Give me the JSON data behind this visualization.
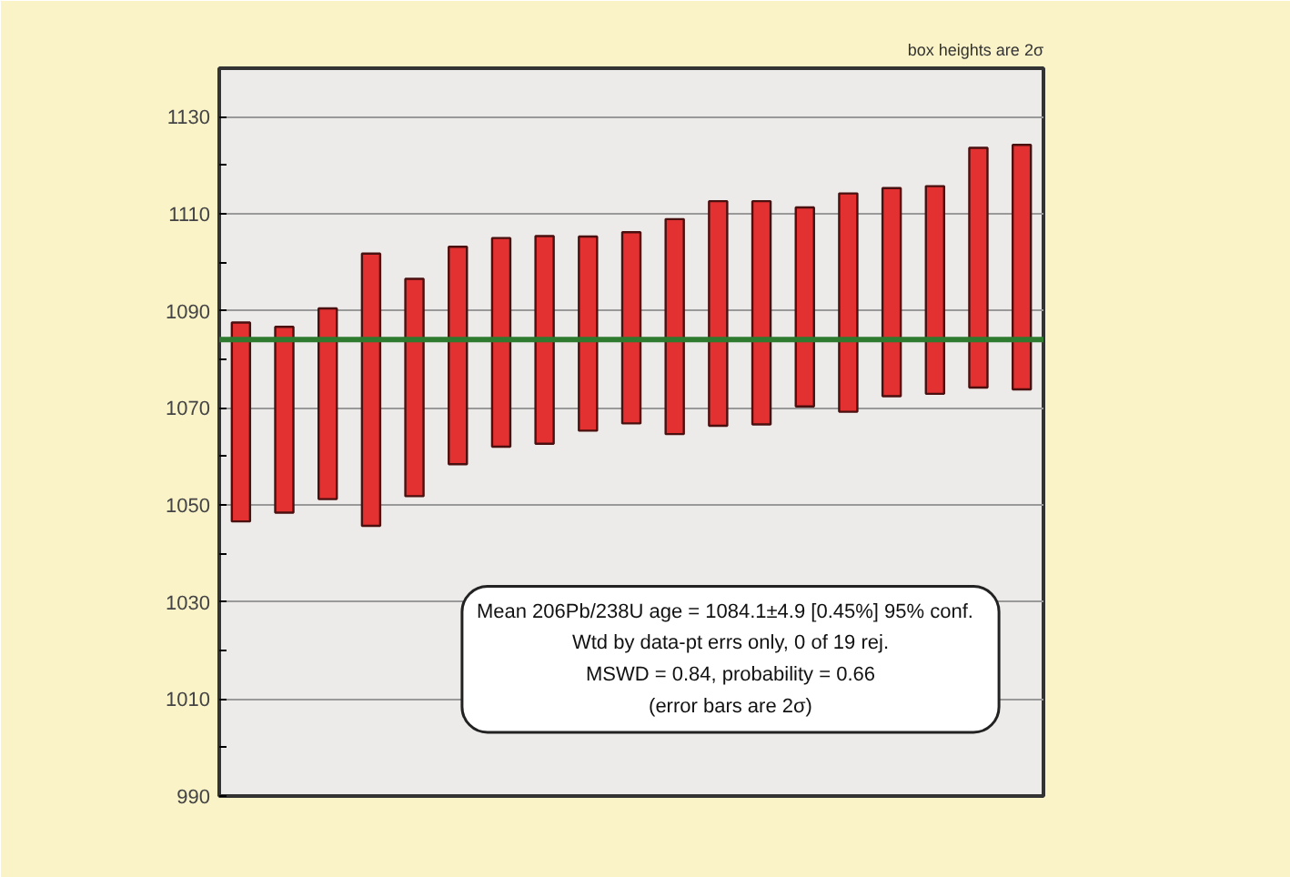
{
  "chart_data": {
    "type": "bar",
    "categories": [
      null,
      null,
      null,
      null,
      null,
      null,
      null,
      null,
      null,
      null,
      null,
      null,
      null,
      null,
      null,
      null,
      null,
      null,
      null
    ],
    "base": [
      1046.6,
      1048.4,
      1051.2,
      1045.7,
      1051.8,
      1058.4,
      1062.0,
      1062.6,
      1065.3,
      1066.8,
      1064.6,
      1066.3,
      1066.6,
      1070.3,
      1069.2,
      1072.4,
      1072.9,
      1074.2,
      1073.8
    ],
    "values": [
      41.0,
      38.3,
      39.3,
      56.1,
      44.8,
      44.8,
      43.0,
      42.8,
      40.0,
      39.4,
      44.3,
      46.3,
      46.0,
      41.0,
      45.0,
      42.9,
      42.8,
      49.4,
      50.4
    ],
    "color": "#e33030",
    "ylim": [
      990,
      1140
    ],
    "yticks": [
      990,
      {
        "value": 1000,
        "label": null
      },
      1010,
      {
        "value": 1020,
        "label": null
      },
      1030,
      {
        "value": 1040,
        "label": null
      },
      1050,
      {
        "value": 1060,
        "label": null
      },
      1070,
      {
        "value": 1080,
        "label": null
      },
      1090,
      {
        "value": 1100,
        "label": null
      },
      1110,
      {
        "value": 1120,
        "label": null
      },
      1130
    ],
    "grid": "y",
    "ref_lines": [
      {
        "axis": "y",
        "value": 1084.1,
        "color": "#2e7a2e"
      }
    ],
    "annotations": [
      "box heights are 2σ",
      "Mean 206Pb/238U age = 1084.1±4.9  [0.45%]  95% conf.",
      "Wtd by data-pt errs only, 0 of 19 rej.",
      "MSWD = 0.84, probability = 0.66",
      "(error bars are 2σ)"
    ]
  }
}
